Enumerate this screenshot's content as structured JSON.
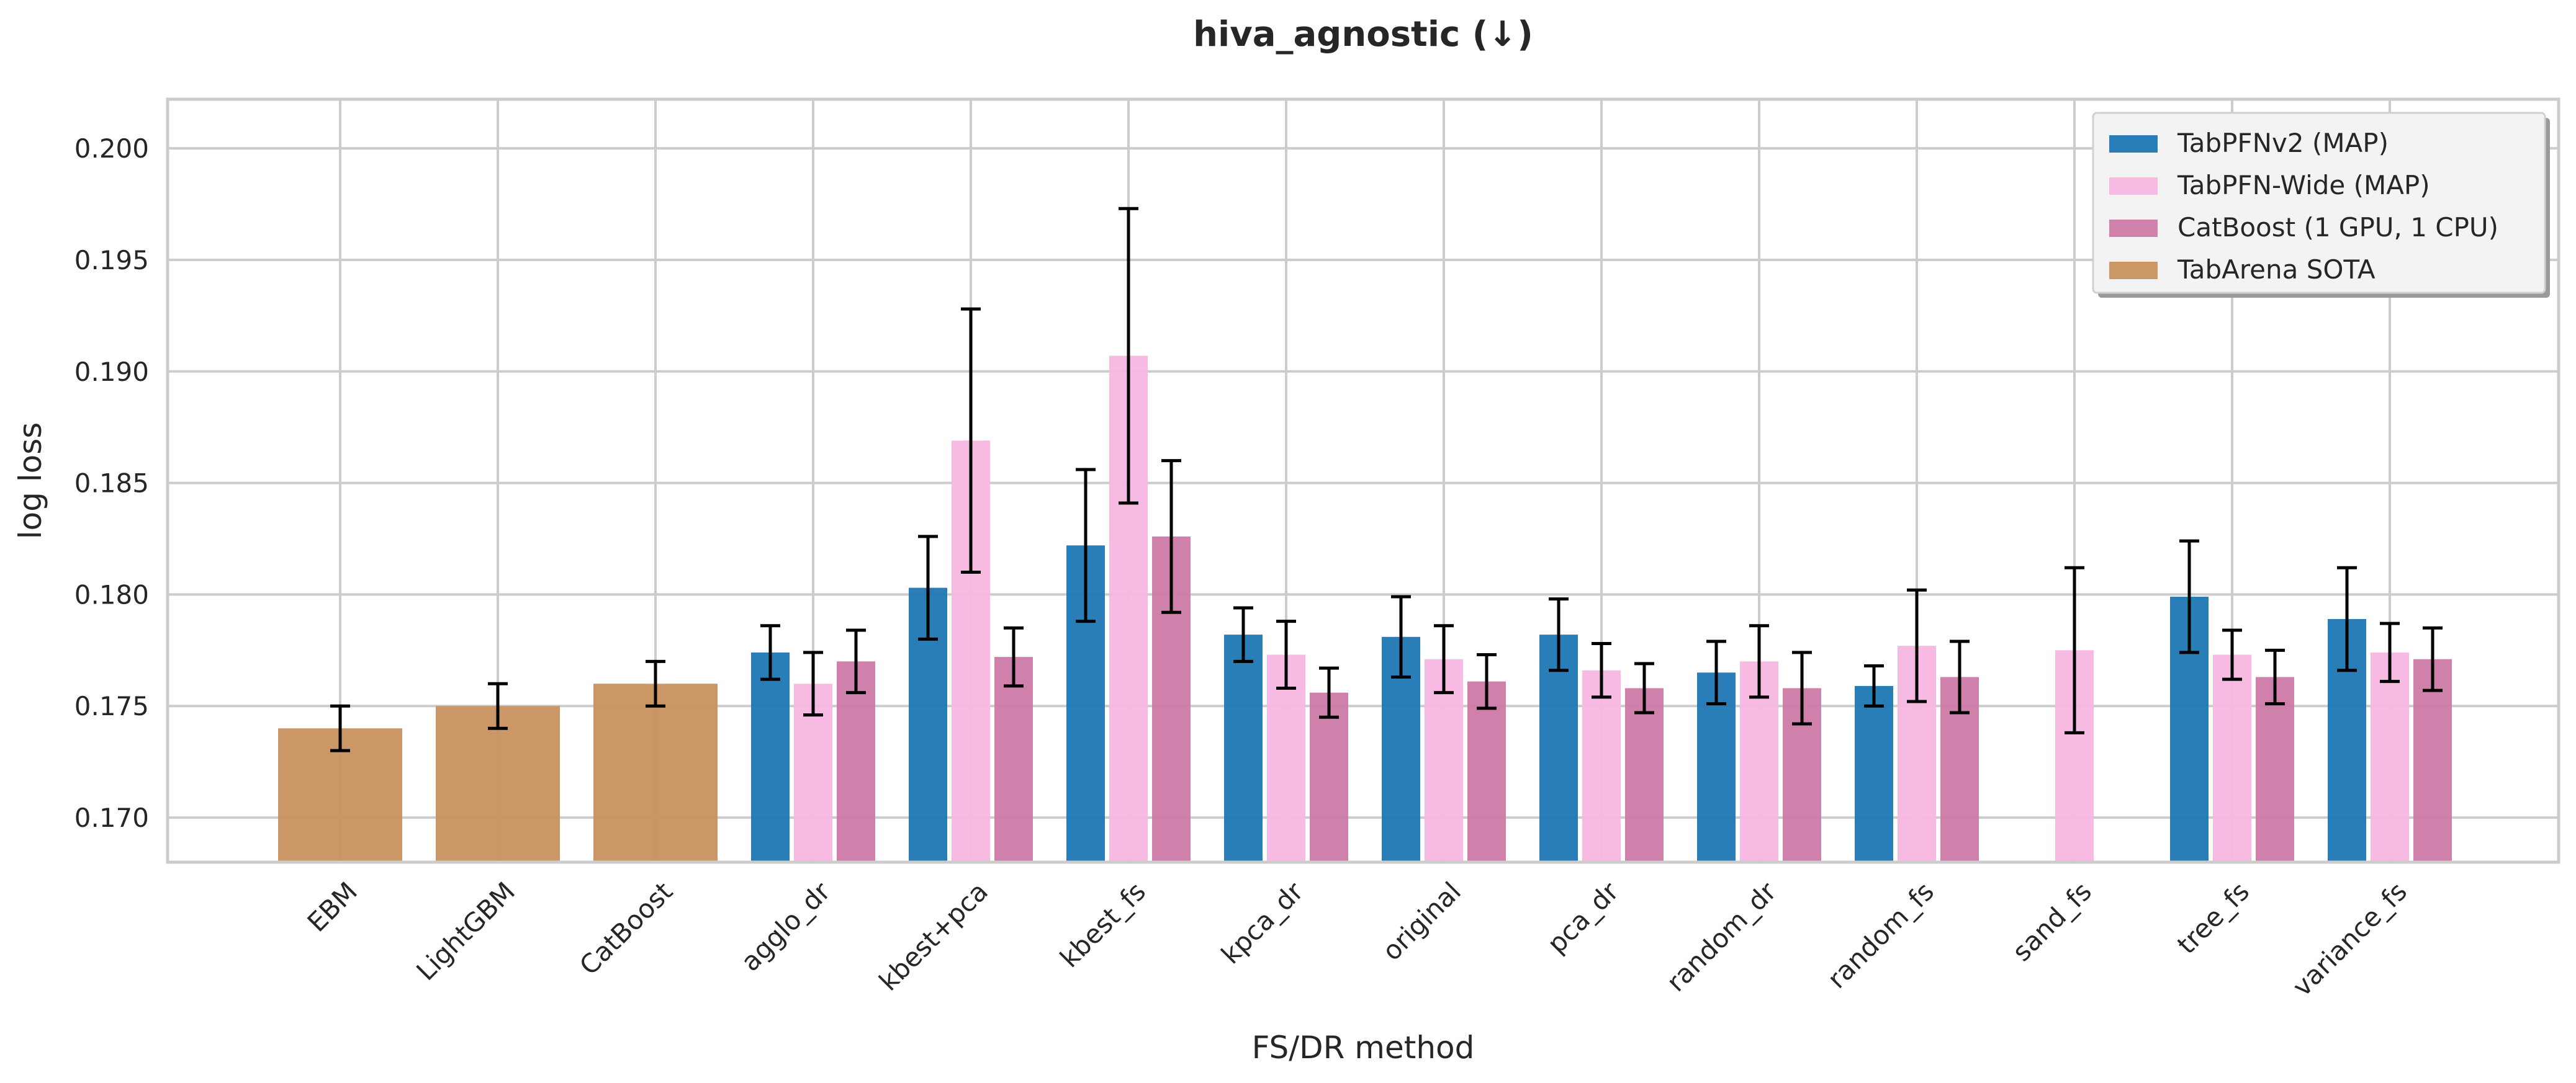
{
  "chart_data": {
    "type": "bar",
    "title": "hiva_agnostic (↓)",
    "xlabel": "FS/DR method",
    "ylabel": "log loss",
    "ylim": [
      0.168,
      0.2022
    ],
    "yticks": [
      "0.170",
      "0.175",
      "0.180",
      "0.185",
      "0.190",
      "0.195",
      "0.200"
    ],
    "grid": true,
    "legend_position": "top-right",
    "categories": [
      "EBM",
      "LightGBM",
      "CatBoost",
      "agglo_dr",
      "kbest+pca",
      "kbest_fs",
      "kpca_dr",
      "original",
      "pca_dr",
      "random_dr",
      "random_fs",
      "sand_fs",
      "tree_fs",
      "variance_fs"
    ],
    "series": [
      {
        "name": "TabPFNv2 (MAP)",
        "color": "#1f77b4",
        "values": [
          null,
          null,
          null,
          0.1774,
          0.1803,
          0.1822,
          0.1782,
          0.1781,
          0.1782,
          0.1765,
          0.1759,
          null,
          0.1799,
          0.1789
        ],
        "errors": [
          null,
          null,
          null,
          0.0012,
          0.0023,
          0.0034,
          0.0012,
          0.0018,
          0.0016,
          0.0014,
          0.0009,
          null,
          0.0025,
          0.0023
        ]
      },
      {
        "name": "TabPFN-Wide (MAP)",
        "color": "#f7b6e0",
        "values": [
          null,
          null,
          null,
          0.176,
          0.1869,
          0.1907,
          0.1773,
          0.1771,
          0.1766,
          0.177,
          0.1777,
          0.1775,
          0.1773,
          0.1774
        ],
        "errors": [
          null,
          null,
          null,
          0.0014,
          0.0059,
          0.0066,
          0.0015,
          0.0015,
          0.0012,
          0.0016,
          0.0025,
          0.0037,
          0.0011,
          0.0013
        ]
      },
      {
        "name": "CatBoost (1 GPU, 1 CPU)",
        "color": "#cc79a7",
        "values": [
          null,
          null,
          null,
          0.177,
          0.1772,
          0.1826,
          0.1756,
          0.1761,
          0.1758,
          0.1758,
          0.1763,
          null,
          0.1763,
          0.1771
        ],
        "errors": [
          null,
          null,
          null,
          0.0014,
          0.0013,
          0.0034,
          0.0011,
          0.0012,
          0.0011,
          0.0016,
          0.0016,
          null,
          0.0012,
          0.0014
        ]
      },
      {
        "name": "TabArena SOTA",
        "color": "#c8915f",
        "values": [
          0.174,
          0.175,
          0.176,
          null,
          null,
          null,
          null,
          null,
          null,
          null,
          null,
          null,
          null,
          null
        ],
        "errors": [
          0.001,
          0.001,
          0.001,
          null,
          null,
          null,
          null,
          null,
          null,
          null,
          null,
          null,
          null,
          null
        ]
      }
    ]
  }
}
